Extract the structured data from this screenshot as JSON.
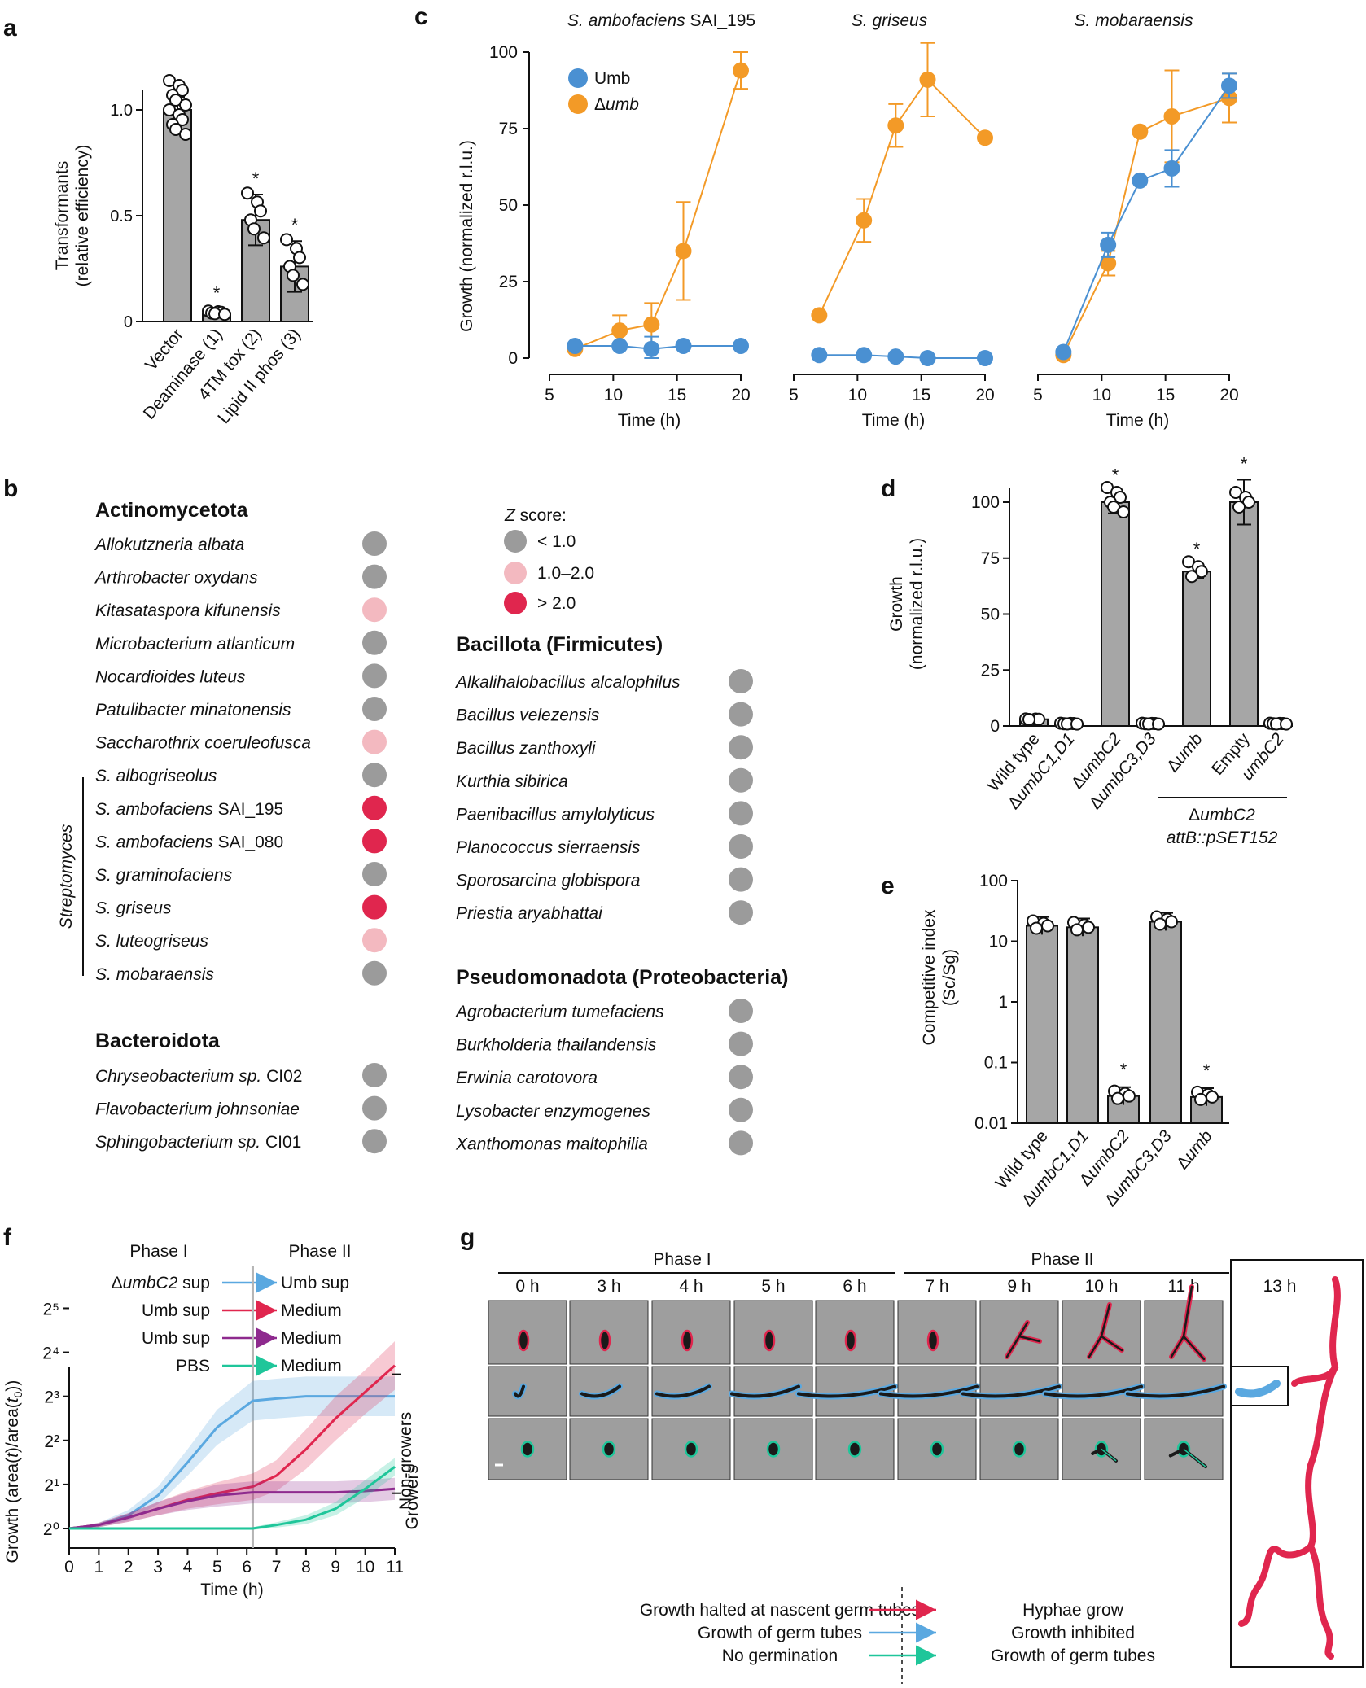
{
  "panel_labels": {
    "a": "a",
    "b": "b",
    "c": "c",
    "d": "d",
    "e": "e",
    "f": "f",
    "g": "g"
  },
  "colors": {
    "grey": "#a6a6a6",
    "umb": "#4a90d2",
    "dumb": "#f39a27",
    "red": "#e0264e",
    "blue": "#5aa8e0",
    "purple": "#8e2a8e",
    "green": "#1fc69a",
    "pink": "#f3b9c0",
    "dot_grey": "#9b9b9b"
  },
  "chart_data": [
    {
      "id": "a",
      "type": "bar",
      "ylabel": "Transformants",
      "ylabel2": "(relative efficiency)",
      "ylim": [
        0,
        1.1
      ],
      "ytick_labels": [
        "0",
        "0.5",
        "1.0"
      ],
      "categories": [
        "Vector",
        "Deaminase (1)",
        "4TM tox (2)",
        "Lipid II phos (3)"
      ],
      "values": [
        1.0,
        0.04,
        0.48,
        0.26
      ],
      "sd": [
        0.06,
        0.02,
        0.12,
        0.12
      ],
      "significance": [
        "",
        "*",
        "*",
        "*"
      ]
    },
    {
      "id": "c",
      "type": "line",
      "ylabel": "Growth (normalized r.l.u.)",
      "xlabel": "Time (h)",
      "ylim": [
        0,
        100
      ],
      "ytick_labels": [
        "0",
        "25",
        "50",
        "75",
        "100"
      ],
      "xlim": [
        5,
        20
      ],
      "xtick_labels": [
        "5",
        "10",
        "15",
        "20"
      ],
      "legend": [
        {
          "name": "Umb",
          "italic": ""
        },
        {
          "name": "Δ",
          "italic": "umb"
        }
      ],
      "subplots": [
        {
          "title_italic": "S. ambofaciens",
          "title_plain": " SAI_195",
          "umb": {
            "x": [
              7,
              10.5,
              13,
              15.5,
              20
            ],
            "y": [
              4,
              4,
              3,
              4,
              4
            ],
            "err": [
              1,
              1,
              4,
              1,
              1
            ]
          },
          "dumb": {
            "x": [
              7,
              10.5,
              13,
              15.5,
              20
            ],
            "y": [
              3,
              9,
              11,
              35,
              94
            ],
            "err": [
              1,
              5,
              7,
              16,
              6
            ]
          }
        },
        {
          "title_italic": "S. griseus",
          "title_plain": "",
          "umb": {
            "x": [
              7,
              10.5,
              13,
              15.5,
              20
            ],
            "y": [
              1,
              1,
              0.5,
              0,
              0
            ],
            "err": [
              0,
              0,
              0,
              0,
              0
            ]
          },
          "dumb": {
            "x": [
              7,
              10.5,
              13,
              15.5,
              20
            ],
            "y": [
              14,
              45,
              76,
              91,
              72
            ],
            "err": [
              0,
              7,
              7,
              12,
              0
            ]
          }
        },
        {
          "title_italic": "S. mobaraensis",
          "title_plain": "",
          "umb": {
            "x": [
              7,
              10.5,
              13,
              15.5,
              20
            ],
            "y": [
              2,
              37,
              58,
              62,
              89
            ],
            "err": [
              0,
              4,
              0,
              6,
              4
            ]
          },
          "dumb": {
            "x": [
              7,
              10.5,
              13,
              15.5,
              20
            ],
            "y": [
              1,
              31,
              74,
              79,
              85
            ],
            "err": [
              0,
              4,
              0,
              15,
              8
            ]
          }
        }
      ]
    },
    {
      "id": "d",
      "type": "bar",
      "ylabel": "Growth",
      "ylabel2": "(normalized r.l.u.)",
      "ylim": [
        0,
        100
      ],
      "ytick_labels": [
        "0",
        "25",
        "50",
        "75",
        "100"
      ],
      "categories": [
        {
          "pre": "",
          "it": "",
          "post": "Wild type"
        },
        {
          "pre": "Δ",
          "it": "umbC1,D1",
          "post": ""
        },
        {
          "pre": "Δ",
          "it": "umbC2",
          "post": ""
        },
        {
          "pre": "Δ",
          "it": "umbC3,D3",
          "post": ""
        },
        {
          "pre": "Δ",
          "it": "umb",
          "post": ""
        },
        {
          "pre": "",
          "it": "",
          "post": "Empty"
        },
        {
          "pre": "",
          "it": "umbC2",
          "post": ""
        }
      ],
      "values": [
        3,
        1,
        100,
        1,
        69,
        100,
        1
      ],
      "sd": [
        1,
        0.5,
        5,
        0.5,
        3,
        10,
        0.5
      ],
      "significance": [
        "",
        "",
        "*",
        "",
        "*",
        "*",
        ""
      ],
      "group_label_pre": "Δ",
      "group_label_it": "umbC2",
      "group_label2": "attB::pSET152"
    },
    {
      "id": "e",
      "type": "bar",
      "yscale": "log",
      "ylabel": "Competitive index",
      "ylabel2": "(Sc/Sg)",
      "ylim": [
        0.01,
        100
      ],
      "ytick_labels": [
        "0.01",
        "0.1",
        "1",
        "10",
        "100"
      ],
      "categories": [
        {
          "pre": "",
          "it": "",
          "post": "Wild type"
        },
        {
          "pre": "Δ",
          "it": "umbC1,D1",
          "post": ""
        },
        {
          "pre": "Δ",
          "it": "umbC2",
          "post": ""
        },
        {
          "pre": "Δ",
          "it": "umbC3,D3",
          "post": ""
        },
        {
          "pre": "Δ",
          "it": "umb",
          "post": ""
        }
      ],
      "values": [
        18,
        17,
        0.028,
        21,
        0.027
      ],
      "significance": [
        "",
        "",
        "*",
        "",
        "*"
      ]
    },
    {
      "id": "f",
      "type": "line",
      "ylabel": "Growth (area(t)/area(t0))",
      "xlabel": "Time (h)",
      "xlim": [
        0,
        11
      ],
      "ylim_log2": [
        0,
        5.6
      ],
      "xtick_labels": [
        "0",
        "1",
        "2",
        "3",
        "4",
        "5",
        "6",
        "7",
        "8",
        "9",
        "10",
        "11"
      ],
      "ytick_labels": [
        "2⁰",
        "2¹",
        "2²",
        "2³",
        "2⁴",
        "2⁵"
      ],
      "phase_change_h": 6.2,
      "series": [
        {
          "name": "Umb sup",
          "x": [
            0,
            1,
            2,
            3,
            4,
            5,
            6.2,
            7,
            8,
            9,
            10,
            11
          ],
          "log2y": [
            0,
            0.08,
            0.3,
            0.75,
            1.5,
            2.3,
            2.9,
            2.95,
            3.0,
            3.0,
            3.0,
            3.0
          ],
          "band": [
            0,
            0.05,
            0.12,
            0.2,
            0.3,
            0.4,
            0.45,
            0.45,
            0.45,
            0.45,
            0.45,
            0.45
          ]
        },
        {
          "name": "Medium (red)",
          "x": [
            0,
            1,
            2,
            3,
            4,
            5,
            6.2,
            7,
            8,
            9,
            10,
            11
          ],
          "log2y": [
            0,
            0.08,
            0.25,
            0.45,
            0.65,
            0.8,
            0.95,
            1.2,
            1.8,
            2.5,
            3.1,
            3.7
          ],
          "band": [
            0,
            0.05,
            0.1,
            0.15,
            0.2,
            0.25,
            0.3,
            0.35,
            0.45,
            0.5,
            0.5,
            0.55
          ]
        },
        {
          "name": "Medium (purple)",
          "x": [
            0,
            1,
            2,
            3,
            4,
            5,
            6.2,
            7,
            8,
            9,
            10,
            11
          ],
          "log2y": [
            0,
            0.08,
            0.25,
            0.45,
            0.62,
            0.75,
            0.82,
            0.82,
            0.82,
            0.82,
            0.85,
            0.9
          ],
          "band": [
            0,
            0.05,
            0.1,
            0.15,
            0.2,
            0.25,
            0.25,
            0.25,
            0.25,
            0.25,
            0.25,
            0.25
          ]
        },
        {
          "name": "Medium (green)",
          "x": [
            0,
            1,
            2,
            3,
            4,
            5,
            6.2,
            7,
            8,
            9,
            10,
            11
          ],
          "log2y": [
            0,
            0,
            0,
            0,
            0,
            0,
            0,
            0.08,
            0.2,
            0.45,
            0.9,
            1.4
          ],
          "band": [
            0,
            0.03,
            0.03,
            0.03,
            0.03,
            0.03,
            0.03,
            0.06,
            0.1,
            0.15,
            0.2,
            0.2
          ]
        }
      ]
    }
  ],
  "panel_a": {
    "ytick_labels": [
      "0",
      "0.5",
      "1.0"
    ]
  },
  "panel_b": {
    "legend_title_it": "Z",
    "legend_title": " score:",
    "legend": [
      "< 1.0",
      "1.0–2.0",
      "> 2.0"
    ],
    "streptomyces_label": "Streptomyces",
    "groups": [
      {
        "name": "Actinomycetota",
        "items": [
          {
            "it": "Allokutzneria albata",
            "plain": "",
            "z": 0
          },
          {
            "it": "Arthrobacter oxydans",
            "plain": "",
            "z": 0
          },
          {
            "it": "Kitasataspora kifunensis",
            "plain": "",
            "z": 1
          },
          {
            "it": "Microbacterium atlanticum",
            "plain": "",
            "z": 0
          },
          {
            "it": "Nocardioides luteus",
            "plain": "",
            "z": 0
          },
          {
            "it": "Patulibacter minatonensis",
            "plain": "",
            "z": 0
          },
          {
            "it": "Saccharothrix coeruleofusca",
            "plain": "",
            "z": 1
          },
          {
            "it": "S. albogriseolus",
            "plain": "",
            "z": 0
          },
          {
            "it": "S. ambofaciens",
            "plain": " SAI_195",
            "z": 2
          },
          {
            "it": "S. ambofaciens",
            "plain": " SAI_080",
            "z": 2
          },
          {
            "it": "S. graminofaciens",
            "plain": "",
            "z": 0
          },
          {
            "it": "S. griseus",
            "plain": "",
            "z": 2
          },
          {
            "it": "S. luteogriseus",
            "plain": "",
            "z": 1
          },
          {
            "it": "S. mobaraensis",
            "plain": "",
            "z": 0
          }
        ]
      },
      {
        "name": "Bacteroidota",
        "items": [
          {
            "it": "Chryseobacterium sp.",
            "plain": " CI02",
            "z": 0
          },
          {
            "it": "Flavobacterium johnsoniae",
            "plain": "",
            "z": 0
          },
          {
            "it": "Sphingobacterium sp.",
            "plain": " CI01",
            "z": 0
          }
        ]
      },
      {
        "name": "Bacillota (Firmicutes)",
        "items": [
          {
            "it": "Alkalihalobacillus alcalophilus",
            "plain": "",
            "z": 0
          },
          {
            "it": "Bacillus velezensis",
            "plain": "",
            "z": 0
          },
          {
            "it": "Bacillus zanthoxyli",
            "plain": "",
            "z": 0
          },
          {
            "it": "Kurthia sibirica",
            "plain": "",
            "z": 0
          },
          {
            "it": "Paenibacillus amylolyticus",
            "plain": "",
            "z": 0
          },
          {
            "it": "Planococcus sierraensis",
            "plain": "",
            "z": 0
          },
          {
            "it": "Sporosarcina globispora",
            "plain": "",
            "z": 0
          },
          {
            "it": "Priestia aryabhattai",
            "plain": "",
            "z": 0
          }
        ]
      },
      {
        "name": "Pseudomonadota (Proteobacteria)",
        "items": [
          {
            "it": "Agrobacterium tumefaciens",
            "plain": "",
            "z": 0
          },
          {
            "it": "Burkholderia thailandensis",
            "plain": "",
            "z": 0
          },
          {
            "it": "Erwinia carotovora",
            "plain": "",
            "z": 0
          },
          {
            "it": "Lysobacter enzymogenes",
            "plain": "",
            "z": 0
          },
          {
            "it": "Xanthomonas maltophilia",
            "plain": "",
            "z": 0
          }
        ]
      }
    ]
  },
  "panel_f": {
    "phase1": "Phase I",
    "phase2": "Phase II",
    "rows": [
      {
        "left_pre": "Δ",
        "left_it": "umbC2",
        "left_post": " sup",
        "right": "Umb sup"
      },
      {
        "left_pre": "",
        "left_it": "",
        "left_post": "Umb sup",
        "right": "Medium"
      },
      {
        "left_pre": "",
        "left_it": "",
        "left_post": "Umb sup",
        "right": "Medium"
      },
      {
        "left_pre": "",
        "left_it": "",
        "left_post": "PBS",
        "right": "Medium"
      }
    ],
    "growers": "Growers",
    "nongrowers": "Non-growers",
    "ylabel_pre": "Growth (area(",
    "ylabel_t": "t",
    "ylabel_mid": ")/area(",
    "ylabel_t0": "t",
    "ylabel_sub": "0",
    "ylabel_end": "))"
  },
  "panel_g": {
    "phase1": "Phase I",
    "phase2": "Phase II",
    "times": [
      "0 h",
      "3 h",
      "4 h",
      "5 h",
      "6 h",
      "7 h",
      "9 h",
      "10 h",
      "11 h"
    ],
    "final_time": "13 h",
    "legend": [
      {
        "left": "Growth halted at nascent germ tubes",
        "right": "Hyphae grow"
      },
      {
        "left": "Growth of germ tubes",
        "right": "Growth inhibited"
      },
      {
        "left": "No germination",
        "right": "Growth of germ tubes"
      }
    ]
  }
}
